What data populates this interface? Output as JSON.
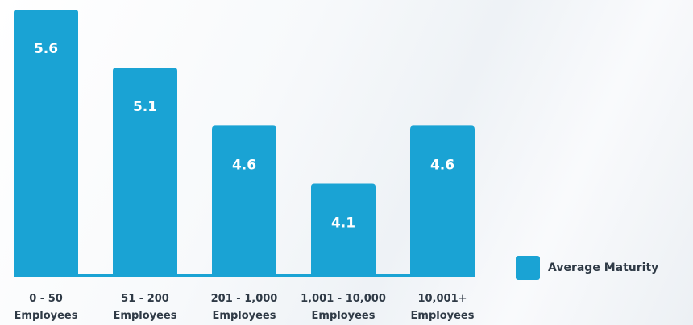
{
  "chart_data": {
    "type": "bar",
    "categories": [
      [
        "0 - 50",
        "Employees"
      ],
      [
        "51 - 200",
        "Employees"
      ],
      [
        "201 - 1,000",
        "Employees"
      ],
      [
        "1,001 - 10,000",
        "Employees"
      ],
      [
        "10,001+",
        "Employees"
      ]
    ],
    "series": [
      {
        "name": "Average Maturity",
        "values": [
          5.6,
          5.1,
          4.6,
          4.1,
          4.6
        ],
        "color": "#1aa3d4"
      }
    ],
    "data_labels": [
      "5.6",
      "5.1",
      "4.6",
      "4.1",
      "4.6"
    ],
    "ylim": [
      3.3,
      5.6
    ],
    "legend_position": "right",
    "grid": false
  }
}
